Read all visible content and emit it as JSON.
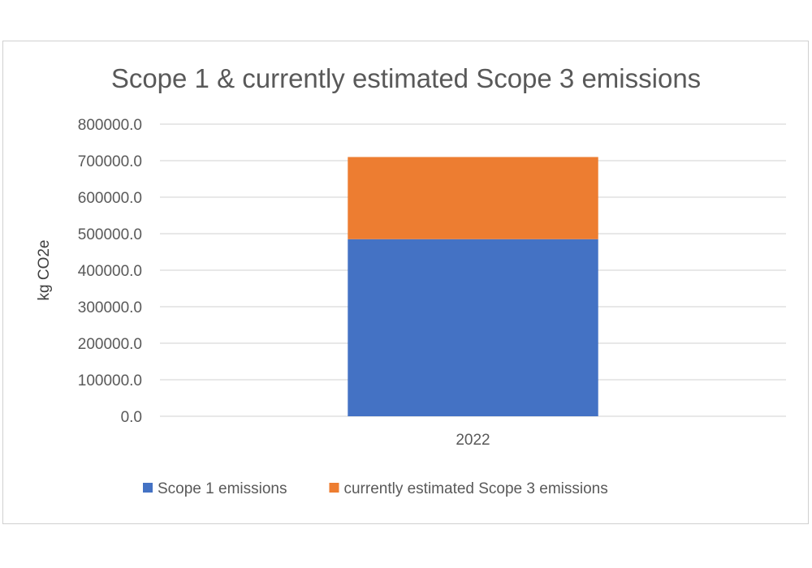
{
  "chart_data": {
    "type": "bar",
    "stacked": true,
    "title": "Scope 1 & currently estimated Scope 3 emissions",
    "xlabel": "",
    "ylabel": "kg CO2e",
    "categories": [
      "2022"
    ],
    "ylim": [
      0,
      800000
    ],
    "yticks": [
      "0.0",
      "100000.0",
      "200000.0",
      "300000.0",
      "400000.0",
      "500000.0",
      "600000.0",
      "700000.0",
      "800000.0"
    ],
    "grid": true,
    "legend": "bottom",
    "series": [
      {
        "name": "Scope 1 emissions",
        "values": [
          485000
        ],
        "color": "#4472C4"
      },
      {
        "name": "currently estimated Scope 3 emissions",
        "values": [
          225000
        ],
        "color": "#ED7D31"
      }
    ]
  }
}
